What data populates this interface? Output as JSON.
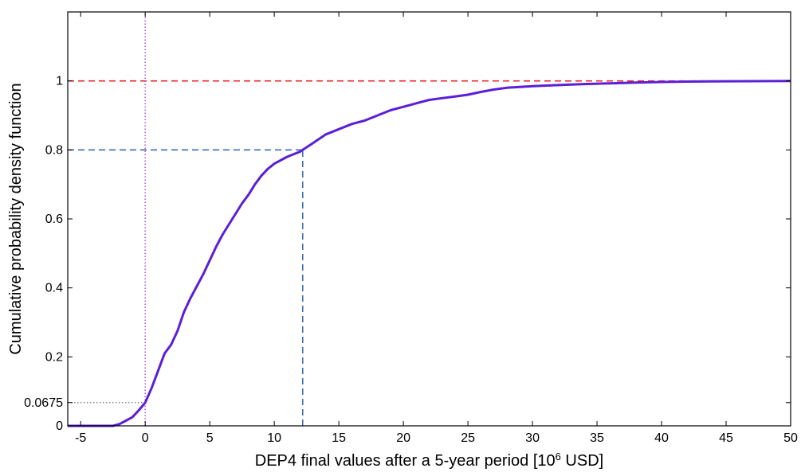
{
  "chart_data": {
    "type": "line",
    "title": "",
    "xlabel": "DEP4 final values after a 5-year period [10",
    "xlabel_sup": "6",
    "xlabel_suffix": " USD]",
    "ylabel": "Cumulative probability density function",
    "xlim": [
      -6,
      50
    ],
    "ylim": [
      0,
      1.2
    ],
    "x_ticks": [
      -5,
      0,
      5,
      10,
      15,
      20,
      25,
      30,
      35,
      40,
      45,
      50
    ],
    "x_tick_labels": [
      "-5",
      "0",
      "5",
      "10",
      "15",
      "20",
      "25",
      "30",
      "35",
      "40",
      "45",
      "50"
    ],
    "y_ticks": [
      0,
      0.0675,
      0.2,
      0.4,
      0.6,
      0.8,
      1
    ],
    "y_tick_labels": [
      "0",
      "0.0675",
      "0.2",
      "0.4",
      "0.6",
      "0.8",
      "1"
    ],
    "grid": false,
    "legend": "none",
    "series": [
      {
        "color": "#5b1fd6",
        "x": [
          -6,
          -2.5,
          -2,
          -1.5,
          -1,
          -0.5,
          0,
          0.5,
          1,
          1.5,
          2,
          2.5,
          3,
          3.5,
          4,
          4.5,
          5,
          5.5,
          6,
          6.5,
          7,
          7.5,
          8,
          8.5,
          9,
          9.5,
          10,
          11,
          12,
          12.2,
          13,
          14,
          15,
          16,
          17,
          18,
          19,
          20,
          21,
          22,
          23,
          24,
          25,
          26,
          27,
          28,
          30,
          32,
          34,
          36,
          38,
          40,
          42,
          45,
          50
        ],
        "y": [
          0,
          0,
          0.005,
          0.015,
          0.025,
          0.045,
          0.0675,
          0.11,
          0.16,
          0.21,
          0.235,
          0.275,
          0.33,
          0.37,
          0.405,
          0.44,
          0.48,
          0.52,
          0.555,
          0.585,
          0.615,
          0.645,
          0.67,
          0.7,
          0.725,
          0.745,
          0.76,
          0.78,
          0.795,
          0.8,
          0.82,
          0.845,
          0.86,
          0.875,
          0.885,
          0.9,
          0.915,
          0.925,
          0.935,
          0.945,
          0.95,
          0.955,
          0.96,
          0.968,
          0.975,
          0.98,
          0.985,
          0.988,
          0.991,
          0.993,
          0.995,
          0.997,
          0.998,
          0.999,
          1.0
        ]
      }
    ],
    "reference_lines": [
      {
        "orientation": "horizontal",
        "value": 1,
        "color": "#e8242d",
        "style": "dashed"
      },
      {
        "orientation": "vertical",
        "value": 0,
        "color": "#b05de0",
        "style": "dotted"
      },
      {
        "orientation": "horizontal",
        "value": 0.8,
        "x_end": 12.2,
        "color": "#3c6bb4",
        "style": "dashed"
      },
      {
        "orientation": "vertical",
        "value": 12.2,
        "y_end": 0.8,
        "color": "#3c6bb4",
        "style": "dashed"
      },
      {
        "orientation": "horizontal",
        "value": 0.0675,
        "x_end": 0,
        "color": "#888888",
        "style": "dotted"
      }
    ]
  }
}
